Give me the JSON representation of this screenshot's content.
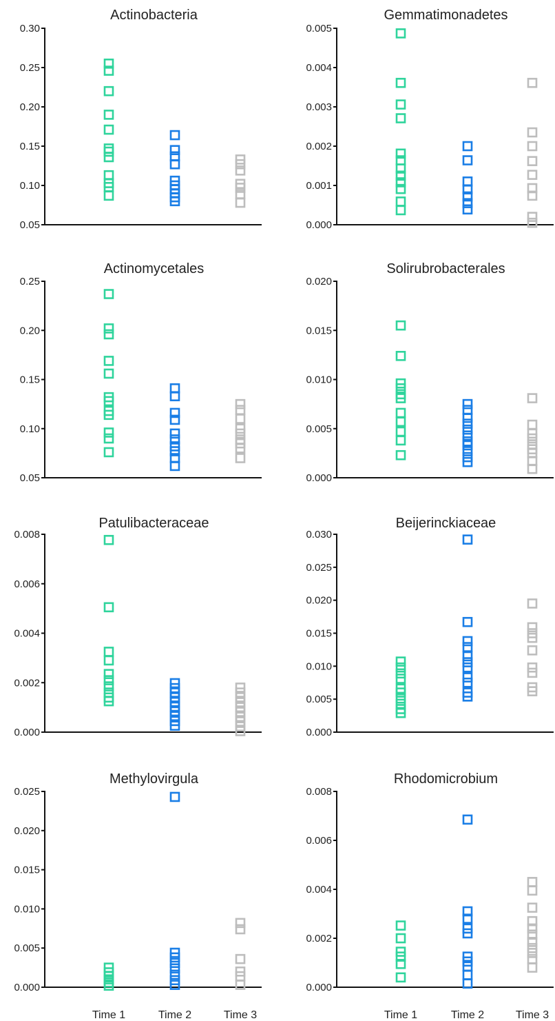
{
  "colors": {
    "Time 1": "#2fd49c",
    "Time 2": "#1a7ee6",
    "Time 3": "#bdbdbd"
  },
  "chart_data": [
    {
      "type": "scatter",
      "title": "Actinobacteria",
      "ylim": [
        0.05,
        0.3
      ],
      "yticks": [
        "0.05",
        "0.10",
        "0.15",
        "0.20",
        "0.25",
        "0.30"
      ],
      "series": [
        {
          "name": "Time 1",
          "values": [
            0.255,
            0.246,
            0.22,
            0.19,
            0.171,
            0.147,
            0.143,
            0.136,
            0.113,
            0.103,
            0.098,
            0.087
          ]
        },
        {
          "name": "Time 2",
          "values": [
            0.164,
            0.145,
            0.137,
            0.127,
            0.106,
            0.1,
            0.095,
            0.09,
            0.085,
            0.08
          ]
        },
        {
          "name": "Time 3",
          "values": [
            0.133,
            0.127,
            0.119,
            0.102,
            0.097,
            0.089,
            0.078
          ]
        }
      ]
    },
    {
      "type": "scatter",
      "title": "Gemmatimonadetes",
      "ylim": [
        0.0,
        0.005
      ],
      "yticks": [
        "0.000",
        "0.001",
        "0.002",
        "0.003",
        "0.004",
        "0.005"
      ],
      "series": [
        {
          "name": "Time 1",
          "values": [
            0.00487,
            0.00361,
            0.00306,
            0.00271,
            0.00181,
            0.00164,
            0.00143,
            0.00125,
            0.00108,
            0.00091,
            0.00059,
            0.00037
          ]
        },
        {
          "name": "Time 2",
          "values": [
            0.002,
            0.00164,
            0.0011,
            0.0009,
            0.00072,
            0.00055,
            0.00039
          ]
        },
        {
          "name": "Time 3",
          "values": [
            0.00361,
            0.00235,
            0.002,
            0.00162,
            0.00127,
            0.00093,
            0.00074,
            0.0002,
            5e-05
          ]
        }
      ]
    },
    {
      "type": "scatter",
      "title": "Actinomycetales",
      "ylim": [
        0.05,
        0.25
      ],
      "yticks": [
        "0.05",
        "0.10",
        "0.15",
        "0.20",
        "0.25"
      ],
      "series": [
        {
          "name": "Time 1",
          "values": [
            0.237,
            0.202,
            0.196,
            0.169,
            0.156,
            0.132,
            0.128,
            0.118,
            0.114,
            0.096,
            0.09,
            0.076
          ]
        },
        {
          "name": "Time 2",
          "values": [
            0.141,
            0.133,
            0.116,
            0.109,
            0.095,
            0.089,
            0.082,
            0.077,
            0.07,
            0.062
          ]
        },
        {
          "name": "Time 3",
          "values": [
            0.125,
            0.119,
            0.11,
            0.1,
            0.095,
            0.089,
            0.085,
            0.08,
            0.07
          ]
        }
      ]
    },
    {
      "type": "scatter",
      "title": "Solirubrobacterales",
      "ylim": [
        0.0,
        0.02
      ],
      "yticks": [
        "0.000",
        "0.005",
        "0.010",
        "0.015",
        "0.020"
      ],
      "series": [
        {
          "name": "Time 1",
          "values": [
            0.0155,
            0.0124,
            0.0096,
            0.0091,
            0.0085,
            0.0081,
            0.0066,
            0.0057,
            0.0047,
            0.0038,
            0.0023
          ]
        },
        {
          "name": "Time 2",
          "values": [
            0.0075,
            0.0069,
            0.0061,
            0.0055,
            0.0049,
            0.0043,
            0.0037,
            0.0033,
            0.0027,
            0.0021,
            0.0016
          ]
        },
        {
          "name": "Time 3",
          "values": [
            0.0081,
            0.0054,
            0.0045,
            0.004,
            0.0034,
            0.0029,
            0.0025,
            0.0017,
            0.0009
          ]
        }
      ]
    },
    {
      "type": "scatter",
      "title": "Patulibacteraceae",
      "ylim": [
        0.0,
        0.008
      ],
      "yticks": [
        "0.000",
        "0.002",
        "0.004",
        "0.006",
        "0.008"
      ],
      "series": [
        {
          "name": "Time 1",
          "values": [
            0.00777,
            0.00505,
            0.00325,
            0.0029,
            0.00235,
            0.0021,
            0.00185,
            0.0016,
            0.0014,
            0.00125
          ]
        },
        {
          "name": "Time 2",
          "values": [
            0.00198,
            0.00178,
            0.0016,
            0.00141,
            0.00122,
            0.00103,
            0.00084,
            0.00065,
            0.00045,
            0.00026
          ]
        },
        {
          "name": "Time 3",
          "values": [
            0.0018,
            0.0016,
            0.00141,
            0.00121,
            0.00101,
            0.00082,
            0.00062,
            0.00043,
            0.00023,
            4e-05
          ]
        }
      ]
    },
    {
      "type": "scatter",
      "title": "Beijerinckiaceae",
      "ylim": [
        0.0,
        0.03
      ],
      "yticks": [
        "0.000",
        "0.005",
        "0.010",
        "0.015",
        "0.020",
        "0.025",
        "0.030"
      ],
      "series": [
        {
          "name": "Time 1",
          "values": [
            0.0107,
            0.0098,
            0.0089,
            0.0081,
            0.0066,
            0.006,
            0.0051,
            0.0043,
            0.0035,
            0.0029
          ]
        },
        {
          "name": "Time 2",
          "values": [
            0.0292,
            0.0167,
            0.0138,
            0.0129,
            0.0115,
            0.0106,
            0.0098,
            0.0083,
            0.0075,
            0.006,
            0.0054
          ]
        },
        {
          "name": "Time 3",
          "values": [
            0.0195,
            0.0159,
            0.015,
            0.0143,
            0.0124,
            0.0098,
            0.009,
            0.0068,
            0.0062
          ]
        }
      ]
    },
    {
      "type": "scatter",
      "title": "Methylovirgula",
      "ylim": [
        0.0,
        0.025
      ],
      "yticks": [
        "0.000",
        "0.005",
        "0.010",
        "0.015",
        "0.020",
        "0.025"
      ],
      "series": [
        {
          "name": "Time 1",
          "values": [
            0.0025,
            0.0019,
            0.0014,
            0.001,
            0.0006,
            0.0002
          ]
        },
        {
          "name": "Time 2",
          "values": [
            0.0243,
            0.0044,
            0.0038,
            0.0031,
            0.0024,
            0.0016,
            0.0009,
            0.0003
          ]
        },
        {
          "name": "Time 3",
          "values": [
            0.0082,
            0.0074,
            0.0036,
            0.002,
            0.0014,
            0.0003
          ]
        }
      ]
    },
    {
      "type": "scatter",
      "title": "Rhodomicrobium",
      "ylim": [
        0.0,
        0.008
      ],
      "yticks": [
        "0.000",
        "0.002",
        "0.004",
        "0.006",
        "0.008"
      ],
      "xlabels": [
        "Time 1",
        "Time 2",
        "Time 3"
      ],
      "series": [
        {
          "name": "Time 1",
          "values": [
            0.00252,
            0.002,
            0.00145,
            0.00125,
            0.00095,
            0.0004
          ]
        },
        {
          "name": "Time 2",
          "values": [
            0.00685,
            0.0031,
            0.0028,
            0.0024,
            0.0022,
            0.00125,
            0.00105,
            0.00085,
            0.0005,
            0.00015
          ]
        },
        {
          "name": "Time 3",
          "values": [
            0.0043,
            0.00395,
            0.00325,
            0.0027,
            0.0024,
            0.00215,
            0.00185,
            0.0016,
            0.0014,
            0.00115,
            0.0008
          ]
        }
      ]
    }
  ],
  "bottom_x_labels": {
    "left": [
      "Time 1",
      "Time 2",
      "Time 3"
    ],
    "right": [
      "Time 1",
      "Time 2",
      "Time 3"
    ]
  }
}
